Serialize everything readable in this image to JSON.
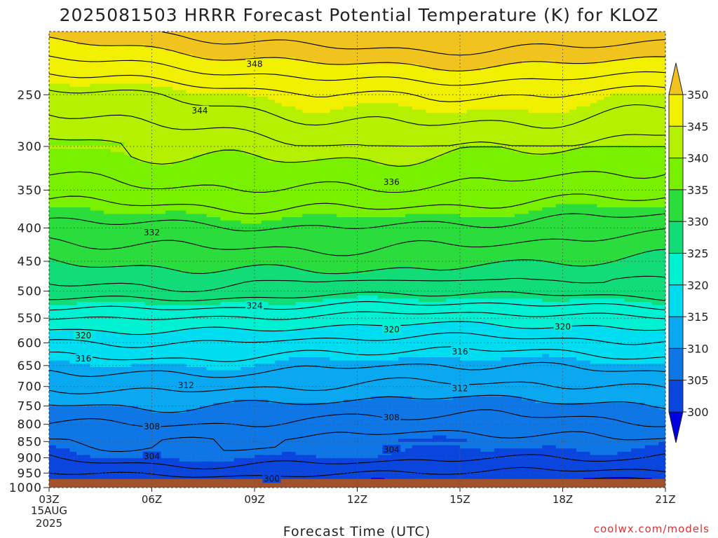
{
  "chart_data": {
    "type": "contour",
    "title": "2025081503 HRRR Forecast Potential Temperature (K) for KLOZ",
    "xlabel": "Forecast Time (UTC)",
    "ylabel": "",
    "credit": "coolwx.com/models",
    "date_label": [
      "15AUG",
      "2025"
    ],
    "x_ticks": [
      "03Z",
      "06Z",
      "09Z",
      "12Z",
      "15Z",
      "18Z",
      "21Z"
    ],
    "x_hours": [
      3,
      21
    ],
    "y_ticks": [
      250,
      300,
      350,
      400,
      450,
      500,
      550,
      600,
      650,
      700,
      750,
      800,
      850,
      900,
      950,
      1000
    ],
    "y_scale": "log-pressure",
    "y_range_hpa": [
      200,
      1000
    ],
    "ground_level_hpa": 970,
    "grid": true,
    "colorbar": {
      "levels": [
        300,
        305,
        310,
        315,
        320,
        325,
        330,
        335,
        340,
        345,
        350
      ],
      "colors": [
        "#0000e0",
        "#0a46de",
        "#0f76e6",
        "#0aa8f0",
        "#00dcf0",
        "#00f0d2",
        "#12dc78",
        "#2adc3c",
        "#78f000",
        "#b4f000",
        "#f0f000",
        "#f0c31e"
      ],
      "placement": "right"
    },
    "contour_interval": 2,
    "contour_labels": [
      {
        "value": 348,
        "hour": 9.0,
        "hpa": 224
      },
      {
        "value": 344,
        "hour": 7.4,
        "hpa": 264
      },
      {
        "value": 336,
        "hour": 13.0,
        "hpa": 340
      },
      {
        "value": 332,
        "hour": 6.0,
        "hpa": 406
      },
      {
        "value": 324,
        "hour": 9.0,
        "hpa": 526
      },
      {
        "value": 320,
        "hour": 4.0,
        "hpa": 584
      },
      {
        "value": 320,
        "hour": 13.0,
        "hpa": 572
      },
      {
        "value": 320,
        "hour": 18.0,
        "hpa": 566
      },
      {
        "value": 316,
        "hour": 4.0,
        "hpa": 634
      },
      {
        "value": 316,
        "hour": 15.0,
        "hpa": 618
      },
      {
        "value": 312,
        "hour": 7.0,
        "hpa": 696
      },
      {
        "value": 312,
        "hour": 15.0,
        "hpa": 704
      },
      {
        "value": 308,
        "hour": 6.0,
        "hpa": 805
      },
      {
        "value": 308,
        "hour": 13.0,
        "hpa": 780
      },
      {
        "value": 304,
        "hour": 6.0,
        "hpa": 895
      },
      {
        "value": 304,
        "hour": 13.0,
        "hpa": 874
      },
      {
        "value": 300,
        "hour": 9.5,
        "hpa": 968
      }
    ]
  }
}
